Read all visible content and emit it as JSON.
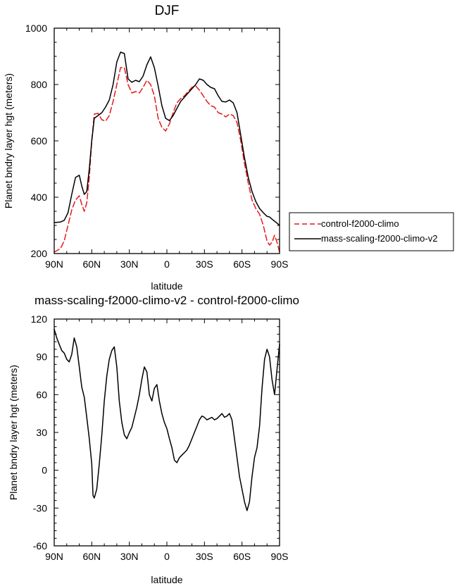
{
  "chart_data": [
    {
      "type": "line",
      "title": "DJF",
      "xlabel": "latitude",
      "ylabel": "Planet bndry layer hgt (meters)",
      "xlim": [
        90,
        -90
      ],
      "ylim": [
        200,
        1000
      ],
      "x_ticks": [
        {
          "value": 90,
          "label": "90N"
        },
        {
          "value": 60,
          "label": "60N"
        },
        {
          "value": 30,
          "label": "30N"
        },
        {
          "value": 0,
          "label": "0"
        },
        {
          "value": -30,
          "label": "30S"
        },
        {
          "value": -60,
          "label": "60S"
        },
        {
          "value": -90,
          "label": "90S"
        }
      ],
      "y_ticks": [
        200,
        400,
        600,
        800,
        1000
      ],
      "legend_position": "right",
      "series": [
        {
          "name": "control-f2000-climo",
          "color": "#e41a1c",
          "dash": "dashed",
          "x": [
            90,
            85,
            82,
            79,
            76,
            73,
            70,
            68,
            66,
            64,
            62,
            60,
            58,
            55,
            52,
            49,
            46,
            43,
            40,
            37,
            34,
            31,
            28,
            25,
            22,
            19,
            16,
            13,
            10,
            7,
            4,
            1,
            -2,
            -5,
            -8,
            -11,
            -14,
            -17,
            -20,
            -23,
            -26,
            -29,
            -32,
            -35,
            -38,
            -41,
            -44,
            -47,
            -50,
            -53,
            -56,
            -59,
            -62,
            -65,
            -68,
            -71,
            -74,
            -77,
            -80,
            -82,
            -84,
            -86,
            -88,
            -90
          ],
          "y": [
            205,
            218,
            245,
            300,
            355,
            390,
            405,
            375,
            350,
            380,
            470,
            600,
            695,
            698,
            675,
            670,
            690,
            740,
            800,
            860,
            860,
            800,
            770,
            775,
            770,
            790,
            815,
            800,
            760,
            680,
            648,
            635,
            660,
            700,
            735,
            750,
            760,
            775,
            790,
            795,
            780,
            760,
            740,
            725,
            720,
            700,
            695,
            685,
            695,
            690,
            665,
            600,
            520,
            450,
            390,
            360,
            340,
            300,
            245,
            230,
            240,
            265,
            240,
            205
          ]
        },
        {
          "name": "mass-scaling-f2000-climo-v2",
          "color": "#000000",
          "dash": "solid",
          "x": [
            90,
            85,
            82,
            79,
            76,
            73,
            70,
            68,
            66,
            64,
            62,
            60,
            58,
            55,
            52,
            49,
            46,
            43,
            40,
            37,
            34,
            31,
            28,
            25,
            22,
            19,
            16,
            13,
            10,
            7,
            4,
            1,
            -2,
            -5,
            -8,
            -11,
            -14,
            -17,
            -20,
            -23,
            -26,
            -29,
            -32,
            -35,
            -38,
            -41,
            -44,
            -47,
            -50,
            -53,
            -56,
            -59,
            -62,
            -65,
            -68,
            -71,
            -74,
            -77,
            -80,
            -82,
            -84,
            -86,
            -88,
            -90
          ],
          "y": [
            310,
            312,
            318,
            345,
            410,
            470,
            478,
            440,
            410,
            420,
            500,
            600,
            680,
            690,
            700,
            720,
            745,
            800,
            880,
            915,
            910,
            820,
            808,
            815,
            810,
            830,
            870,
            898,
            860,
            795,
            725,
            680,
            672,
            690,
            715,
            740,
            755,
            770,
            785,
            800,
            820,
            815,
            800,
            790,
            785,
            760,
            740,
            738,
            745,
            735,
            700,
            620,
            540,
            470,
            420,
            385,
            360,
            345,
            332,
            330,
            322,
            315,
            308,
            300
          ]
        }
      ]
    },
    {
      "type": "line",
      "title": "mass-scaling-f2000-climo-v2 - control-f2000-climo",
      "xlabel": "latitude",
      "ylabel": "Planet bndry layer hgt (meters)",
      "xlim": [
        90,
        -90
      ],
      "ylim": [
        -60,
        120
      ],
      "x_ticks": [
        {
          "value": 90,
          "label": "90N"
        },
        {
          "value": 60,
          "label": "60N"
        },
        {
          "value": 30,
          "label": "30N"
        },
        {
          "value": 0,
          "label": "0"
        },
        {
          "value": -30,
          "label": "30S"
        },
        {
          "value": -60,
          "label": "60S"
        },
        {
          "value": -90,
          "label": "90S"
        }
      ],
      "y_ticks": [
        -60,
        -30,
        0,
        30,
        60,
        90,
        120
      ],
      "series": [
        {
          "color": "#000000",
          "dash": "solid",
          "x": [
            90,
            88,
            86,
            84,
            82,
            80,
            78,
            76,
            74,
            72,
            70,
            68,
            66,
            64,
            62,
            60,
            59,
            58,
            56,
            54,
            52,
            50,
            48,
            46,
            44,
            42,
            40,
            38,
            36,
            34,
            32,
            30,
            28,
            26,
            24,
            22,
            20,
            18,
            16,
            14,
            12,
            10,
            8,
            6,
            4,
            2,
            0,
            -2,
            -4,
            -6,
            -8,
            -10,
            -12,
            -14,
            -16,
            -18,
            -20,
            -22,
            -24,
            -26,
            -28,
            -30,
            -32,
            -34,
            -36,
            -38,
            -40,
            -42,
            -44,
            -46,
            -48,
            -50,
            -52,
            -54,
            -56,
            -58,
            -60,
            -62,
            -64,
            -66,
            -68,
            -70,
            -72,
            -74,
            -76,
            -78,
            -80,
            -82,
            -84,
            -86,
            -88,
            -90
          ],
          "y": [
            112,
            105,
            100,
            95,
            93,
            88,
            86,
            92,
            105,
            98,
            82,
            66,
            58,
            42,
            25,
            5,
            -20,
            -22,
            -15,
            5,
            28,
            55,
            75,
            88,
            95,
            98,
            82,
            55,
            38,
            28,
            25,
            30,
            34,
            42,
            50,
            60,
            72,
            82,
            78,
            60,
            55,
            65,
            68,
            55,
            45,
            38,
            33,
            25,
            18,
            8,
            6,
            10,
            12,
            14,
            16,
            20,
            25,
            30,
            35,
            40,
            43,
            42,
            40,
            41,
            42,
            40,
            41,
            43,
            45,
            42,
            43,
            45,
            40,
            25,
            10,
            -5,
            -15,
            -25,
            -32,
            -25,
            -5,
            10,
            18,
            35,
            65,
            88,
            96,
            90,
            72,
            60,
            80,
            100
          ]
        }
      ]
    }
  ]
}
